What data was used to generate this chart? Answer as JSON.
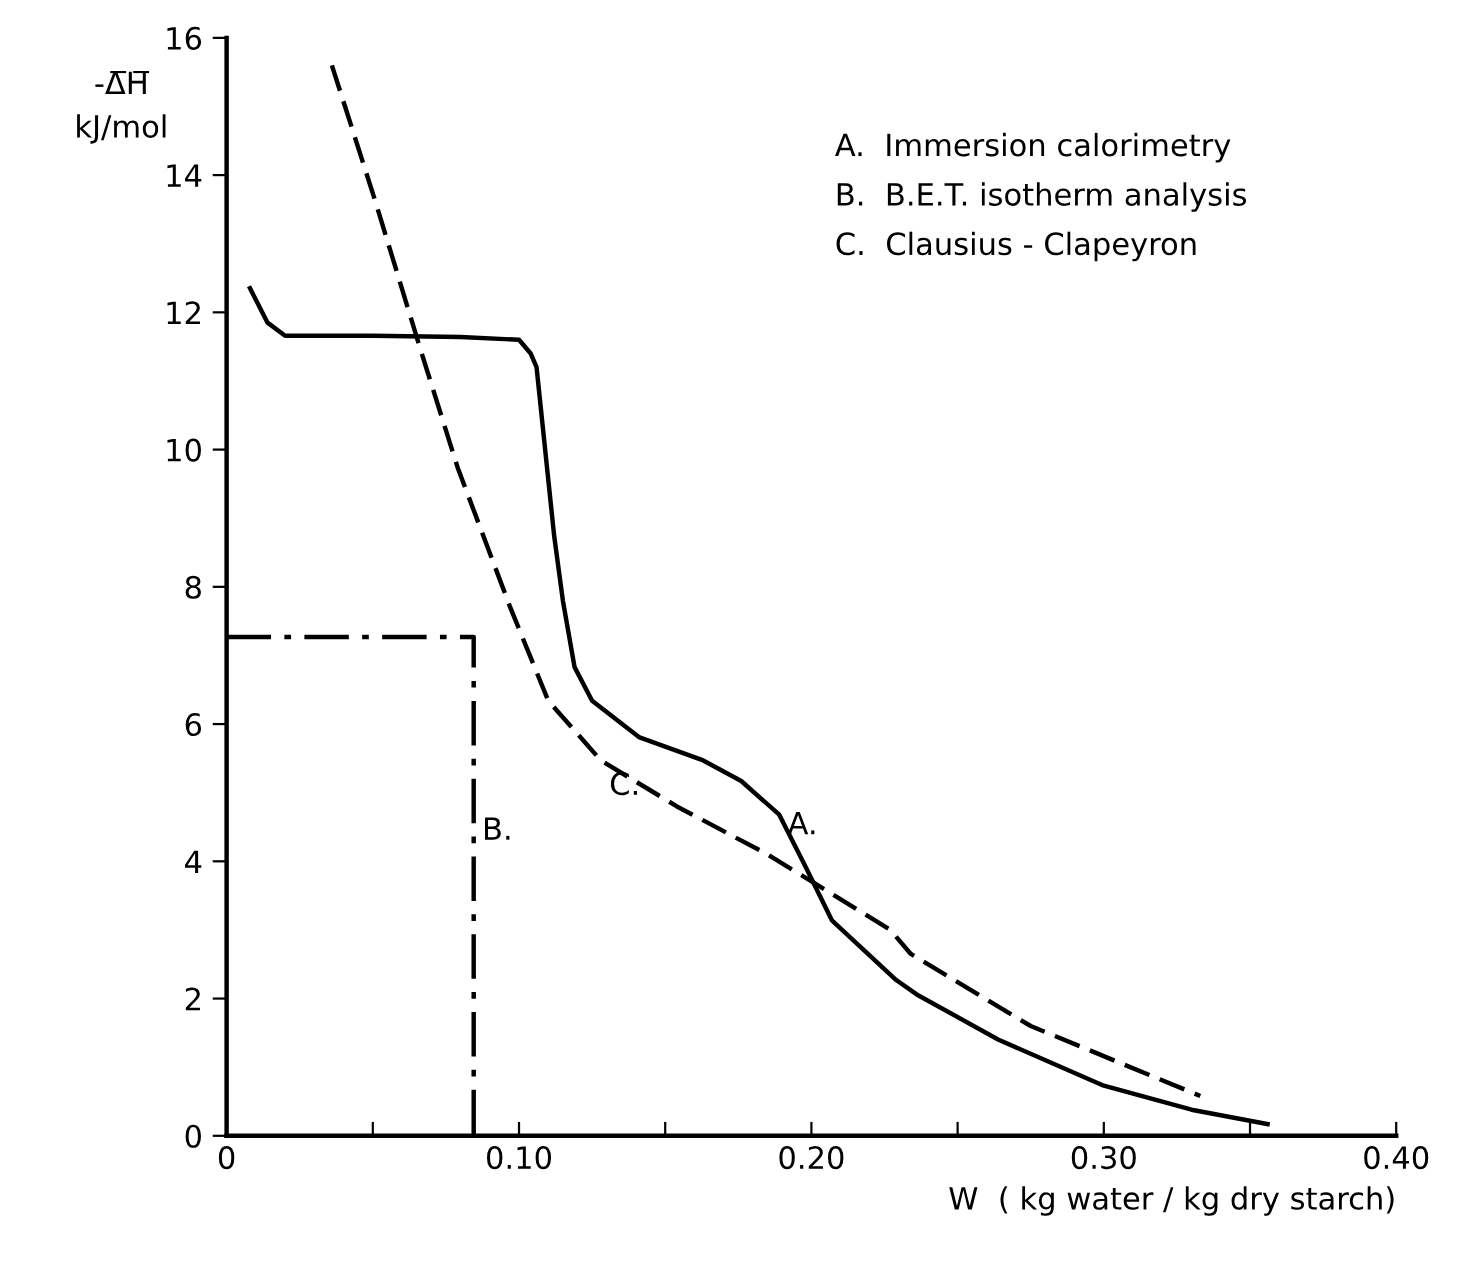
{
  "chart_data": {
    "type": "line",
    "xlabel": "W  ( kg water / kg dry starch)",
    "ylabel": "-Δ̅H̅\nkJ/mol",
    "xlim": [
      0,
      0.4
    ],
    "ylim": [
      0,
      16
    ],
    "xticks": [
      {
        "value": 0,
        "label": "0"
      },
      {
        "value": 0.05,
        "label": null
      },
      {
        "value": 0.1,
        "label": "0.10"
      },
      {
        "value": 0.15,
        "label": null
      },
      {
        "value": 0.2,
        "label": "0.20"
      },
      {
        "value": 0.25,
        "label": null
      },
      {
        "value": 0.3,
        "label": "0.30"
      },
      {
        "value": 0.35,
        "label": null
      },
      {
        "value": 0.4,
        "label": "0.40"
      }
    ],
    "yticks": [
      0,
      2,
      4,
      6,
      8,
      10,
      12,
      14,
      16
    ],
    "grid": false,
    "legend": false,
    "series": [
      {
        "color": "#000000",
        "line_style": "solid",
        "x": [
          0.008,
          0.014,
          0.02,
          0.05,
          0.08,
          0.1,
          0.104,
          0.106,
          0.112,
          0.115,
          0.119,
          0.125,
          0.141,
          0.163,
          0.176,
          0.189,
          0.198,
          0.207,
          0.229,
          0.236,
          0.264,
          0.3,
          0.33,
          0.356
        ],
        "values": [
          12.35,
          11.85,
          11.66,
          11.66,
          11.64,
          11.6,
          11.4,
          11.2,
          8.75,
          7.8,
          6.83,
          6.34,
          5.81,
          5.47,
          5.17,
          4.68,
          3.92,
          3.14,
          2.27,
          2.06,
          1.4,
          0.73,
          0.38,
          0.17
        ]
      },
      {
        "color": "#000000",
        "line_style": "dashdot",
        "x": [
          0,
          0.0845,
          0.0845
        ],
        "values": [
          7.27,
          7.27,
          0
        ]
      },
      {
        "color": "#000000",
        "line_style": "dashed",
        "x": [
          0.036,
          0.051,
          0.066,
          0.079,
          0.097,
          0.11,
          0.128,
          0.154,
          0.185,
          0.203,
          0.227,
          0.234,
          0.275,
          0.333
        ],
        "values": [
          15.6,
          13.6,
          11.5,
          9.74,
          7.7,
          6.34,
          5.47,
          4.8,
          4.1,
          3.63,
          3.0,
          2.65,
          1.6,
          0.58
        ]
      }
    ],
    "annotations": [
      {
        "text": "B.",
        "x": 0.0845,
        "y": 4.6
      },
      {
        "text": "C.",
        "x": 0.128,
        "y": 5.47
      },
      {
        "text": "A.",
        "x": 0.189,
        "y": 4.68
      },
      "A.  Immersion calorimetry",
      "B.  B.E.T. isotherm analysis",
      "C.  Clausius - Clapeyron"
    ]
  }
}
